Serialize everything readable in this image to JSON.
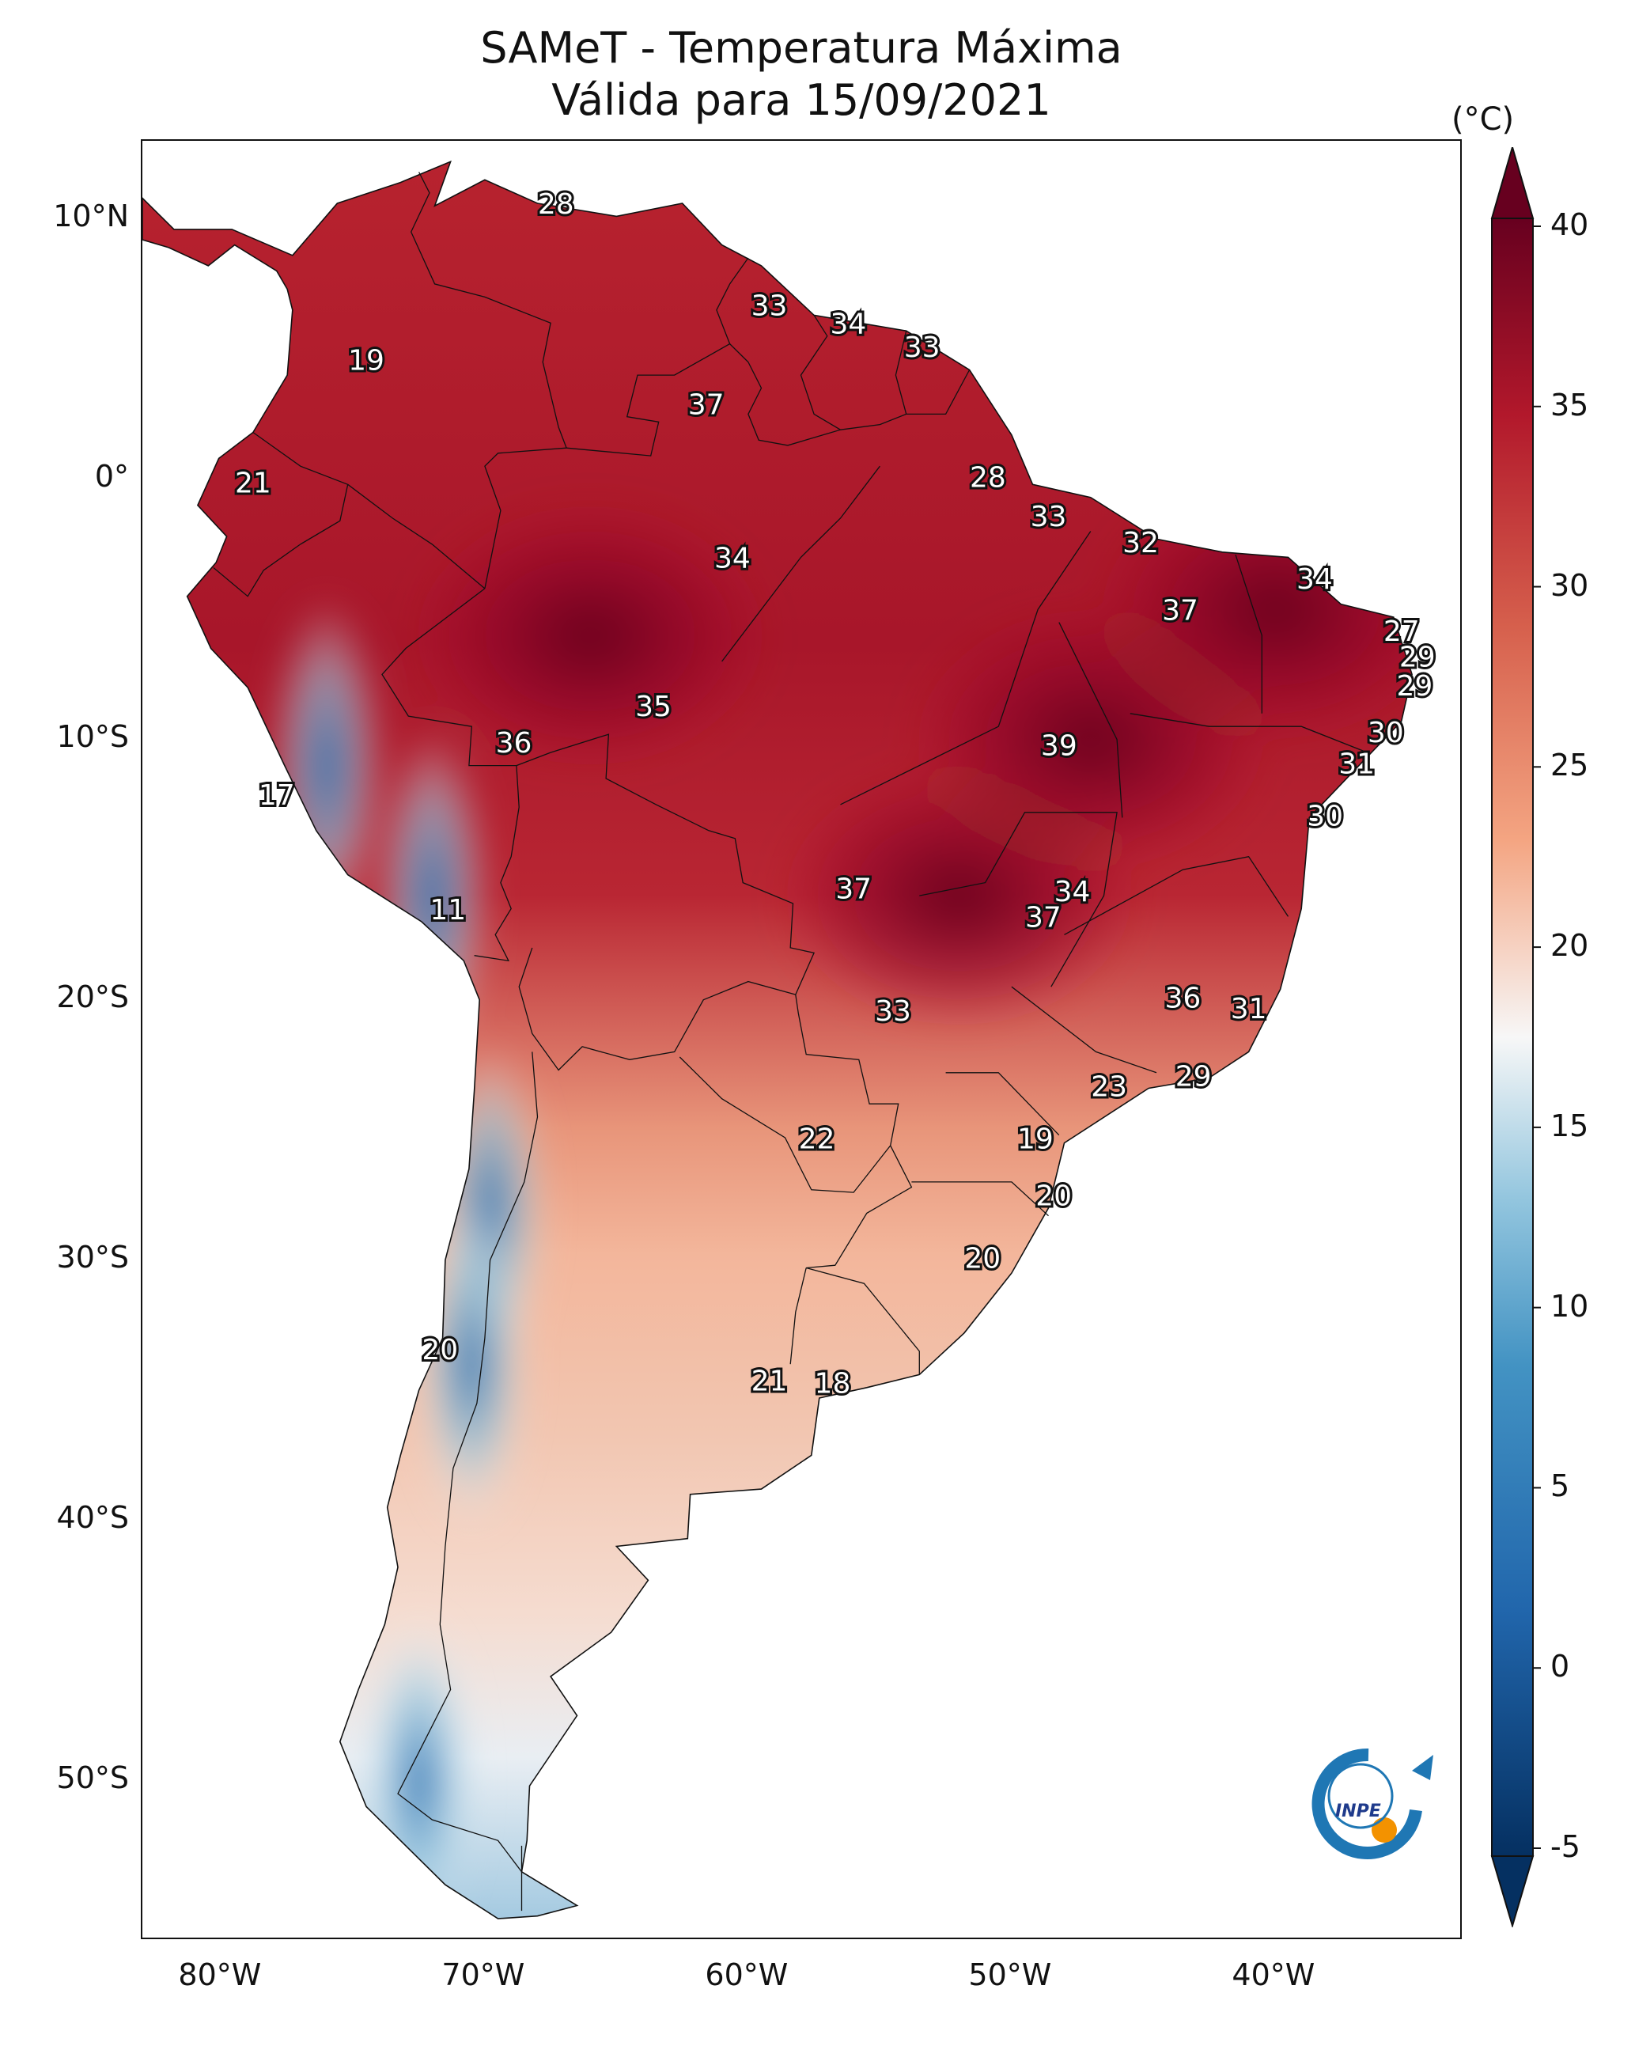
{
  "title": {
    "line1": "SAMeT - Temperatura Máxima",
    "line2": "Válida para 15/09/2021"
  },
  "map": {
    "projection": "PlateCarree",
    "lon_range": [
      -83,
      -33
    ],
    "lat_range": [
      -56,
      13
    ],
    "lat_ticks": [
      {
        "lat": 10,
        "label": "10°N"
      },
      {
        "lat": 0,
        "label": "0°"
      },
      {
        "lat": -10,
        "label": "10°S"
      },
      {
        "lat": -20,
        "label": "20°S"
      },
      {
        "lat": -30,
        "label": "30°S"
      },
      {
        "lat": -40,
        "label": "40°S"
      },
      {
        "lat": -50,
        "label": "50°S"
      }
    ],
    "lon_ticks": [
      {
        "lon": -80,
        "label": "80°W"
      },
      {
        "lon": -70,
        "label": "70°W"
      },
      {
        "lon": -60,
        "label": "60°W"
      },
      {
        "lon": -50,
        "label": "50°W"
      },
      {
        "lon": -40,
        "label": "40°W"
      }
    ],
    "land_outline": [
      [
        -77.3,
        8.6
      ],
      [
        -75.6,
        10.6
      ],
      [
        -73.2,
        11.4
      ],
      [
        -71.3,
        12.2
      ],
      [
        -71.9,
        10.5
      ],
      [
        -70.0,
        11.5
      ],
      [
        -68.0,
        10.6
      ],
      [
        -65.0,
        10.1
      ],
      [
        -62.5,
        10.6
      ],
      [
        -61.0,
        9.0
      ],
      [
        -59.5,
        8.2
      ],
      [
        -57.5,
        6.3
      ],
      [
        -54.0,
        5.7
      ],
      [
        -51.6,
        4.2
      ],
      [
        -50.0,
        1.7
      ],
      [
        -49.2,
        -0.2
      ],
      [
        -47.0,
        -0.7
      ],
      [
        -44.5,
        -2.3
      ],
      [
        -42.0,
        -2.8
      ],
      [
        -39.5,
        -3.0
      ],
      [
        -37.5,
        -4.8
      ],
      [
        -35.5,
        -5.3
      ],
      [
        -34.8,
        -7.5
      ],
      [
        -35.2,
        -9.3
      ],
      [
        -37.0,
        -11.2
      ],
      [
        -38.7,
        -13.0
      ],
      [
        -39.0,
        -16.5
      ],
      [
        -39.8,
        -19.6
      ],
      [
        -41.0,
        -22.0
      ],
      [
        -42.5,
        -23.0
      ],
      [
        -44.8,
        -23.4
      ],
      [
        -48.0,
        -25.5
      ],
      [
        -48.6,
        -28.0
      ],
      [
        -50.0,
        -30.5
      ],
      [
        -51.8,
        -32.8
      ],
      [
        -53.5,
        -34.4
      ],
      [
        -55.5,
        -34.9
      ],
      [
        -57.3,
        -35.3
      ],
      [
        -57.6,
        -37.5
      ],
      [
        -59.5,
        -38.8
      ],
      [
        -62.2,
        -39.0
      ],
      [
        -62.3,
        -40.7
      ],
      [
        -65.0,
        -41.0
      ],
      [
        -63.8,
        -42.3
      ],
      [
        -65.2,
        -44.3
      ],
      [
        -67.5,
        -46.0
      ],
      [
        -66.5,
        -47.5
      ],
      [
        -68.3,
        -50.2
      ],
      [
        -68.4,
        -52.3
      ],
      [
        -68.6,
        -53.5
      ],
      [
        -66.5,
        -54.8
      ],
      [
        -68.0,
        -55.2
      ],
      [
        -69.5,
        -55.3
      ],
      [
        -71.5,
        -54.0
      ],
      [
        -73.0,
        -52.5
      ],
      [
        -74.5,
        -51.0
      ],
      [
        -75.5,
        -48.5
      ],
      [
        -74.8,
        -46.5
      ],
      [
        -73.8,
        -44.0
      ],
      [
        -73.3,
        -41.8
      ],
      [
        -73.7,
        -39.5
      ],
      [
        -73.2,
        -37.5
      ],
      [
        -72.5,
        -35.0
      ],
      [
        -71.6,
        -33.0
      ],
      [
        -71.5,
        -30.0
      ],
      [
        -70.6,
        -26.5
      ],
      [
        -70.4,
        -23.5
      ],
      [
        -70.2,
        -20.0
      ],
      [
        -70.8,
        -18.5
      ],
      [
        -72.4,
        -17.0
      ],
      [
        -75.2,
        -15.2
      ],
      [
        -76.4,
        -13.5
      ],
      [
        -77.6,
        -11.0
      ],
      [
        -79.0,
        -8.0
      ],
      [
        -80.4,
        -6.5
      ],
      [
        -81.3,
        -4.5
      ],
      [
        -80.2,
        -3.2
      ],
      [
        -79.8,
        -2.2
      ],
      [
        -80.9,
        -1.0
      ],
      [
        -80.1,
        0.8
      ],
      [
        -78.8,
        1.8
      ],
      [
        -77.5,
        4.0
      ],
      [
        -77.3,
        6.5
      ],
      [
        -77.5,
        7.3
      ],
      [
        -77.9,
        8.0
      ],
      [
        -79.5,
        9.0
      ],
      [
        -80.5,
        8.2
      ],
      [
        -82.0,
        8.9
      ],
      [
        -83.0,
        9.2
      ],
      [
        -83.0,
        10.8
      ],
      [
        -81.8,
        9.6
      ],
      [
        -79.6,
        9.6
      ],
      [
        -77.3,
        8.6
      ]
    ],
    "borders": [
      [
        [
          -72.5,
          11.8
        ],
        [
          -72.1,
          11.0
        ],
        [
          -72.8,
          9.5
        ],
        [
          -71.9,
          7.5
        ],
        [
          -70.0,
          7.0
        ],
        [
          -67.5,
          6.0
        ],
        [
          -67.8,
          4.5
        ],
        [
          -67.2,
          2.0
        ],
        [
          -66.9,
          1.2
        ]
      ],
      [
        [
          -60.0,
          8.5
        ],
        [
          -60.7,
          7.5
        ],
        [
          -61.2,
          6.5
        ],
        [
          -60.7,
          5.2
        ],
        [
          -62.8,
          4.0
        ],
        [
          -64.2,
          4.0
        ],
        [
          -64.6,
          2.4
        ],
        [
          -63.4,
          2.2
        ],
        [
          -63.7,
          0.9
        ],
        [
          -66.9,
          1.2
        ]
      ],
      [
        [
          -57.5,
          6.3
        ],
        [
          -57.0,
          5.5
        ],
        [
          -58.0,
          4.0
        ],
        [
          -57.5,
          2.5
        ],
        [
          -56.5,
          1.9
        ],
        [
          -58.5,
          1.3
        ],
        [
          -59.6,
          1.5
        ],
        [
          -60.0,
          2.5
        ],
        [
          -59.5,
          3.5
        ],
        [
          -60.0,
          4.5
        ],
        [
          -60.7,
          5.2
        ]
      ],
      [
        [
          -54.0,
          5.7
        ],
        [
          -54.4,
          4.0
        ],
        [
          -54.0,
          2.5
        ],
        [
          -55.0,
          2.1
        ],
        [
          -56.5,
          1.9
        ]
      ],
      [
        [
          -51.6,
          4.2
        ],
        [
          -52.5,
          2.5
        ],
        [
          -54.0,
          2.5
        ]
      ],
      [
        [
          -66.9,
          1.2
        ],
        [
          -69.5,
          1.0
        ],
        [
          -70.0,
          0.5
        ],
        [
          -69.4,
          -1.2
        ],
        [
          -70.0,
          -4.2
        ]
      ],
      [
        [
          -78.8,
          1.8
        ],
        [
          -77.0,
          0.5
        ],
        [
          -75.2,
          -0.2
        ]
      ],
      [
        [
          -75.2,
          -0.2
        ],
        [
          -73.5,
          -1.5
        ],
        [
          -72.0,
          -2.5
        ],
        [
          -70.0,
          -4.2
        ]
      ],
      [
        [
          -80.3,
          -3.4
        ],
        [
          -79.0,
          -4.5
        ],
        [
          -78.4,
          -3.5
        ],
        [
          -77.0,
          -2.5
        ],
        [
          -75.5,
          -1.6
        ],
        [
          -75.2,
          -0.2
        ]
      ],
      [
        [
          -70.0,
          -4.2
        ],
        [
          -73.0,
          -6.5
        ],
        [
          -73.9,
          -7.5
        ],
        [
          -72.9,
          -9.1
        ],
        [
          -70.5,
          -9.5
        ],
        [
          -70.6,
          -11.0
        ],
        [
          -69.5,
          -11.0
        ],
        [
          -68.8,
          -11.0
        ]
      ],
      [
        [
          -68.8,
          -11.0
        ],
        [
          -68.7,
          -12.6
        ],
        [
          -69.0,
          -14.5
        ],
        [
          -69.4,
          -15.5
        ],
        [
          -69.0,
          -16.5
        ],
        [
          -69.6,
          -17.5
        ],
        [
          -69.1,
          -18.5
        ],
        [
          -70.4,
          -18.3
        ]
      ],
      [
        [
          -68.8,
          -11.0
        ],
        [
          -67.5,
          -10.5
        ],
        [
          -65.3,
          -9.8
        ],
        [
          -65.4,
          -11.5
        ],
        [
          -63.5,
          -12.5
        ],
        [
          -61.5,
          -13.5
        ],
        [
          -60.5,
          -13.8
        ],
        [
          -60.2,
          -15.5
        ],
        [
          -58.3,
          -16.3
        ],
        [
          -58.4,
          -18.0
        ],
        [
          -57.5,
          -18.2
        ],
        [
          -58.2,
          -19.8
        ]
      ],
      [
        [
          -68.2,
          -18.0
        ],
        [
          -68.7,
          -19.5
        ],
        [
          -68.2,
          -21.3
        ],
        [
          -67.2,
          -22.7
        ],
        [
          -66.3,
          -21.8
        ],
        [
          -64.5,
          -22.3
        ],
        [
          -62.8,
          -22.0
        ],
        [
          -61.7,
          -20.0
        ],
        [
          -60.0,
          -19.3
        ],
        [
          -58.2,
          -19.8
        ]
      ],
      [
        [
          -62.6,
          -22.2
        ],
        [
          -61.0,
          -23.8
        ],
        [
          -58.6,
          -25.3
        ],
        [
          -57.6,
          -27.3
        ],
        [
          -56.0,
          -27.4
        ],
        [
          -54.6,
          -25.6
        ]
      ],
      [
        [
          -58.2,
          -19.8
        ],
        [
          -58.1,
          -20.5
        ],
        [
          -57.8,
          -22.1
        ],
        [
          -55.8,
          -22.3
        ],
        [
          -55.4,
          -24.0
        ],
        [
          -54.3,
          -24.0
        ],
        [
          -54.6,
          -25.6
        ]
      ],
      [
        [
          -54.6,
          -25.6
        ],
        [
          -53.8,
          -27.2
        ],
        [
          -55.5,
          -28.2
        ],
        [
          -56.7,
          -30.2
        ],
        [
          -57.8,
          -30.3
        ]
      ],
      [
        [
          -57.8,
          -30.3
        ],
        [
          -58.2,
          -32.0
        ],
        [
          -58.4,
          -34.0
        ]
      ],
      [
        [
          -57.8,
          -30.3
        ],
        [
          -55.6,
          -30.9
        ],
        [
          -53.5,
          -33.5
        ],
        [
          -53.5,
          -34.4
        ]
      ],
      [
        [
          -68.2,
          -22.0
        ],
        [
          -68.0,
          -24.5
        ],
        [
          -68.5,
          -27.0
        ],
        [
          -69.8,
          -30.0
        ],
        [
          -70.0,
          -33.0
        ],
        [
          -70.3,
          -35.5
        ],
        [
          -71.2,
          -38.0
        ],
        [
          -71.5,
          -41.0
        ],
        [
          -71.7,
          -44.0
        ],
        [
          -71.3,
          -46.5
        ],
        [
          -72.3,
          -48.5
        ],
        [
          -73.3,
          -50.5
        ],
        [
          -72.0,
          -51.5
        ],
        [
          -69.5,
          -52.3
        ],
        [
          -68.6,
          -53.5
        ]
      ],
      [
        [
          -68.6,
          -52.5
        ],
        [
          -68.6,
          -55.0
        ]
      ],
      [
        [
          -56.5,
          -12.5
        ],
        [
          -50.5,
          -9.5
        ],
        [
          -49.0,
          -5.0
        ],
        [
          -47.0,
          -2.0
        ]
      ],
      [
        [
          -61.0,
          -7.0
        ],
        [
          -58.0,
          -3.0
        ],
        [
          -56.5,
          -1.5
        ],
        [
          -55.0,
          0.5
        ]
      ],
      [
        [
          -53.5,
          -16.0
        ],
        [
          -51.0,
          -15.5
        ],
        [
          -49.5,
          -12.8
        ],
        [
          -46.0,
          -12.8
        ],
        [
          -46.5,
          -16.0
        ],
        [
          -48.5,
          -19.5
        ]
      ],
      [
        [
          -50.0,
          -19.5
        ],
        [
          -46.8,
          -22.0
        ],
        [
          -44.5,
          -22.8
        ]
      ],
      [
        [
          -48.0,
          -17.5
        ],
        [
          -43.5,
          -15.0
        ],
        [
          -41.0,
          -14.5
        ],
        [
          -39.5,
          -16.8
        ]
      ],
      [
        [
          -45.5,
          -9.0
        ],
        [
          -42.5,
          -9.5
        ],
        [
          -39.0,
          -9.5
        ],
        [
          -36.5,
          -10.5
        ]
      ],
      [
        [
          -48.2,
          -5.5
        ],
        [
          -46.0,
          -10.0
        ],
        [
          -45.8,
          -13.0
        ]
      ],
      [
        [
          -41.5,
          -2.9
        ],
        [
          -40.5,
          -6.0
        ],
        [
          -40.5,
          -9.0
        ]
      ],
      [
        [
          -52.5,
          -22.8
        ],
        [
          -50.5,
          -22.8
        ],
        [
          -48.2,
          -25.2
        ]
      ],
      [
        [
          -53.8,
          -27.0
        ],
        [
          -50.0,
          -27.0
        ],
        [
          -48.6,
          -28.3
        ]
      ]
    ],
    "heat_centers": [
      {
        "lon": -66,
        "lat": -6,
        "temp": 40
      },
      {
        "lon": -52,
        "lat": -16,
        "temp": 40
      },
      {
        "lon": -47,
        "lat": -10,
        "temp": 38
      },
      {
        "lon": -40,
        "lat": -5,
        "temp": 37
      }
    ],
    "cold_zones": [
      {
        "lon": -69.8,
        "lat": -28.0,
        "temp": 0
      },
      {
        "lon": -70.5,
        "lat": -34.0,
        "temp": 5
      },
      {
        "lon": -72.5,
        "lat": -50.0,
        "temp": 7
      },
      {
        "lon": -76.0,
        "lat": -11.0,
        "temp": 8
      },
      {
        "lon": -72.0,
        "lat": -16.0,
        "temp": 12
      }
    ],
    "isotherm_labels": [
      {
        "text": "28",
        "lon": -67.3,
        "lat": 10.5
      },
      {
        "text": "19",
        "lon": -74.5,
        "lat": 4.5
      },
      {
        "text": "33",
        "lon": -59.2,
        "lat": 6.6
      },
      {
        "text": "34",
        "lon": -56.2,
        "lat": 5.9
      },
      {
        "text": "33",
        "lon": -53.4,
        "lat": 5.0
      },
      {
        "text": "37",
        "lon": -61.6,
        "lat": 2.8
      },
      {
        "text": "21",
        "lon": -78.8,
        "lat": -0.2
      },
      {
        "text": "28",
        "lon": -50.9,
        "lat": 0.0
      },
      {
        "text": "33",
        "lon": -48.6,
        "lat": -1.5
      },
      {
        "text": "32",
        "lon": -45.1,
        "lat": -2.5
      },
      {
        "text": "34",
        "lon": -60.6,
        "lat": -3.1
      },
      {
        "text": "34",
        "lon": -38.5,
        "lat": -3.9
      },
      {
        "text": "37",
        "lon": -43.6,
        "lat": -5.1
      },
      {
        "text": "27",
        "lon": -35.2,
        "lat": -5.9
      },
      {
        "text": "29",
        "lon": -34.6,
        "lat": -6.9
      },
      {
        "text": "29",
        "lon": -34.7,
        "lat": -8.0
      },
      {
        "text": "35",
        "lon": -63.6,
        "lat": -8.8
      },
      {
        "text": "36",
        "lon": -68.9,
        "lat": -10.2
      },
      {
        "text": "39",
        "lon": -48.2,
        "lat": -10.3
      },
      {
        "text": "30",
        "lon": -35.8,
        "lat": -9.8
      },
      {
        "text": "31",
        "lon": -36.9,
        "lat": -11.0
      },
      {
        "text": "17",
        "lon": -77.9,
        "lat": -12.2
      },
      {
        "text": "30",
        "lon": -38.1,
        "lat": -13.0
      },
      {
        "text": "37",
        "lon": -56.0,
        "lat": -15.8
      },
      {
        "text": "34",
        "lon": -47.7,
        "lat": -15.9
      },
      {
        "text": "37",
        "lon": -48.8,
        "lat": -16.9
      },
      {
        "text": "11",
        "lon": -71.4,
        "lat": -16.6
      },
      {
        "text": "36",
        "lon": -43.5,
        "lat": -20.0
      },
      {
        "text": "31",
        "lon": -41.0,
        "lat": -20.4
      },
      {
        "text": "33",
        "lon": -54.5,
        "lat": -20.5
      },
      {
        "text": "23",
        "lon": -46.3,
        "lat": -23.4
      },
      {
        "text": "29",
        "lon": -43.1,
        "lat": -23.0
      },
      {
        "text": "22",
        "lon": -57.4,
        "lat": -25.4
      },
      {
        "text": "19",
        "lon": -49.1,
        "lat": -25.4
      },
      {
        "text": "20",
        "lon": -48.4,
        "lat": -27.6
      },
      {
        "text": "20",
        "lon": -51.1,
        "lat": -30.0
      },
      {
        "text": "20",
        "lon": -71.7,
        "lat": -33.5
      },
      {
        "text": "21",
        "lon": -59.2,
        "lat": -34.7
      },
      {
        "text": "18",
        "lon": -56.8,
        "lat": -34.8
      }
    ],
    "logo": {
      "text": "INPE"
    }
  },
  "colorbar": {
    "unit": "(°C)",
    "vmin": -5,
    "vmax": 40,
    "extend": "both",
    "colormap": "RdBu_r",
    "ticks": [
      {
        "value": 40,
        "label": "40"
      },
      {
        "value": 35,
        "label": "35"
      },
      {
        "value": 30,
        "label": "30"
      },
      {
        "value": 25,
        "label": "25"
      },
      {
        "value": 20,
        "label": "20"
      },
      {
        "value": 15,
        "label": "15"
      },
      {
        "value": 10,
        "label": "10"
      },
      {
        "value": 5,
        "label": "5"
      },
      {
        "value": 0,
        "label": "0"
      },
      {
        "value": -5,
        "label": "-5"
      }
    ],
    "colors": {
      "low": "#053061",
      "mid_low": "#4393c3",
      "mid": "#f7f7f7",
      "mid_high": "#d6604d",
      "high": "#67001f"
    }
  }
}
